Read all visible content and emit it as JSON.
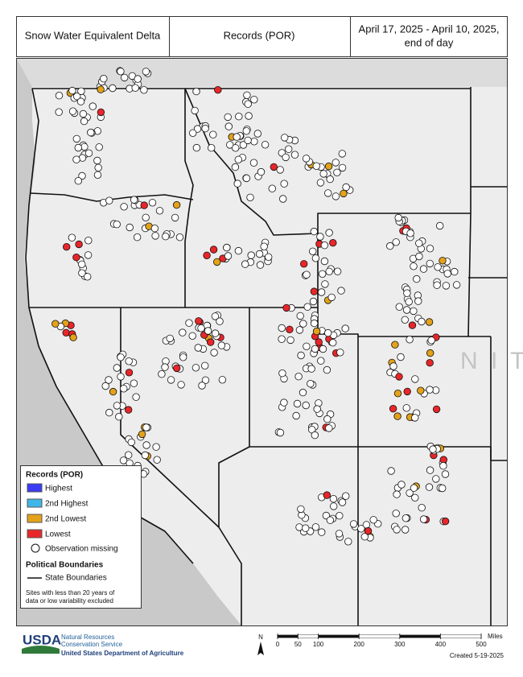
{
  "header": {
    "title": "Snow Water Equivalent Delta",
    "subtitle": "Records (POR)",
    "date_lines": [
      "April 17, 2025 - April 10, 2025,",
      "end of day"
    ]
  },
  "map_labels": [
    "N I T"
  ],
  "legend": {
    "title": "Records (POR)",
    "items": [
      {
        "label": "Highest",
        "color": "#3b3bf5"
      },
      {
        "label": "2nd Highest",
        "color": "#3fb6e8"
      },
      {
        "label": "2nd Lowest",
        "color": "#e3a21a"
      },
      {
        "label": "Lowest",
        "color": "#e8262a"
      }
    ],
    "missing_label": "Observation missing",
    "boundaries_title": "Political Boundaries",
    "boundary_label": "State Boundaries",
    "note_lines": [
      "Sites with less than 20 years of",
      "data or low variability excluded"
    ]
  },
  "footer": {
    "logo": "USDA",
    "agency_lines": [
      "Natural Resources",
      "Conservation Service"
    ],
    "department": "United States Department of Agriculture",
    "north": "N",
    "scale_ticks": [
      0,
      50,
      100,
      200,
      300,
      400,
      500
    ],
    "scale_unit": "Miles",
    "created": "Created 5-19-2025"
  }
}
